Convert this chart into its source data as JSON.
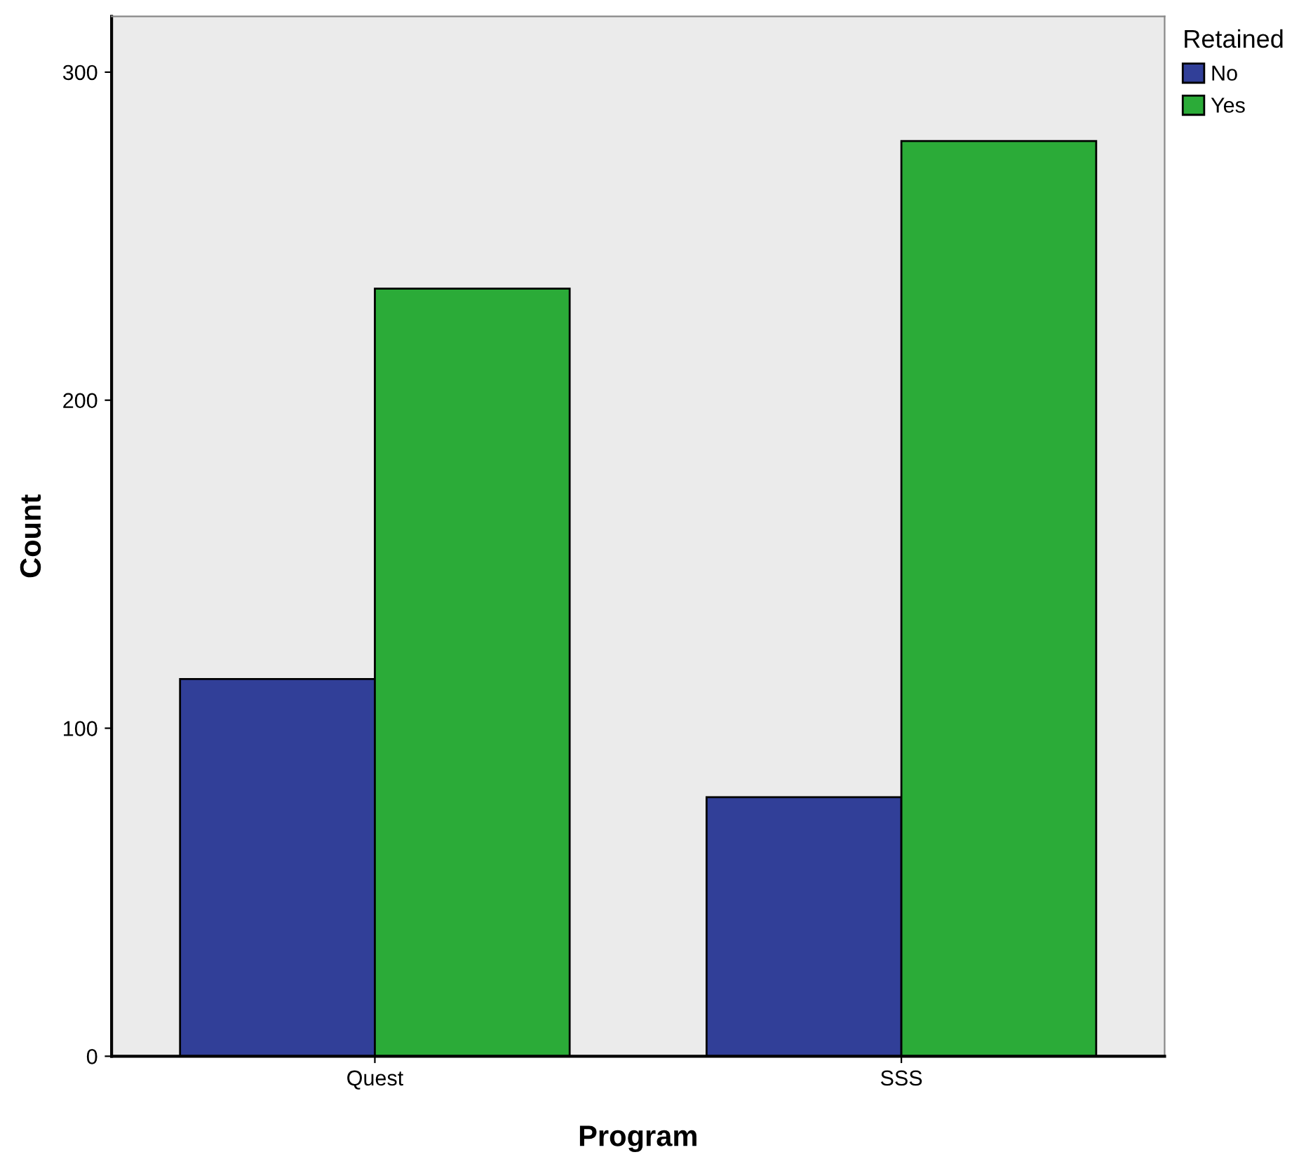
{
  "chart_data": {
    "type": "bar",
    "xlabel": "Program",
    "ylabel": "Count",
    "legend_title": "Retained",
    "categories": [
      "Quest",
      "SSS"
    ],
    "series": [
      {
        "name": "No",
        "color": "#313f98",
        "values": [
          115,
          79
        ]
      },
      {
        "name": "Yes",
        "color": "#2bab38",
        "values": [
          234,
          279
        ]
      }
    ],
    "ylim": [
      0,
      317
    ],
    "yticks": [
      0,
      100,
      200,
      300
    ],
    "grid": false,
    "legend": "top right"
  }
}
